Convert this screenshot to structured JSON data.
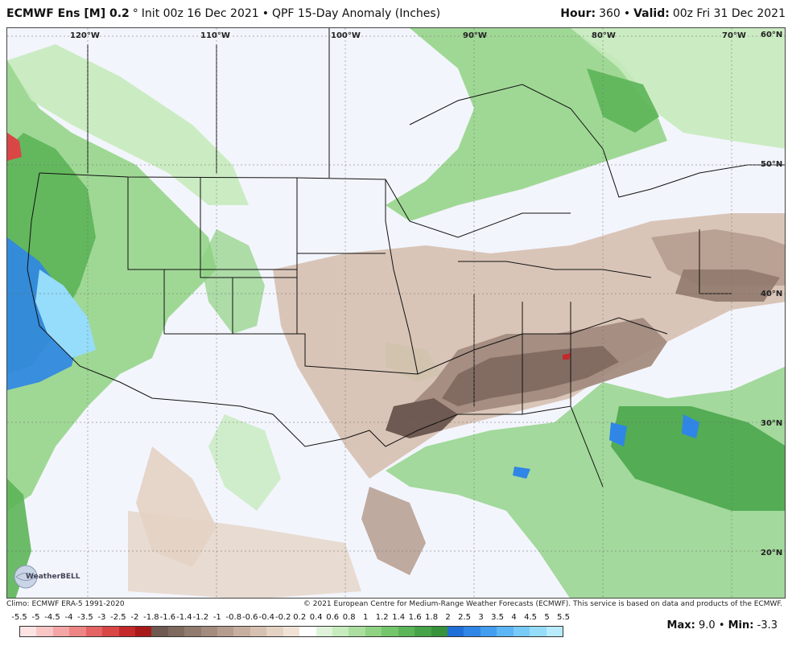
{
  "header": {
    "model": "ECMWF Ens [M] 0.2",
    "degree": "°",
    "init": "Init 00z 16 Dec 2021",
    "bullet": "•",
    "product": "QPF 15-Day Anomaly (Inches)",
    "hour_label": "Hour:",
    "hour_value": "360",
    "valid_label": "Valid:",
    "valid_value": "00z Fri 31 Dec 2021"
  },
  "axes": {
    "longitudes": [
      "120°W",
      "110°W",
      "100°W",
      "90°W",
      "80°W",
      "70°W"
    ],
    "latitudes": [
      "60°N",
      "50°N",
      "40°N",
      "30°N",
      "20°N"
    ]
  },
  "footer": {
    "climo": "Climo: ECMWF ERA-5 1991-2020",
    "copyright": "© 2021 European Centre for Medium-Range Weather Forecasts (ECMWF). This service is based on data and products of the ECMWF."
  },
  "colorbar": {
    "labels": [
      "-5.5",
      "-5",
      "-4.5",
      "-4",
      "-3.5",
      "-3",
      "-2.5",
      "-2",
      "-1.8",
      "-1.6",
      "-1.4",
      "-1.2",
      "-1",
      "-0.8",
      "-0.6",
      "-0.4",
      "-0.2",
      "0.2",
      "0.4",
      "0.6",
      "0.8",
      "1",
      "1.2",
      "1.4",
      "1.6",
      "1.8",
      "2",
      "2.5",
      "3",
      "3.5",
      "4",
      "4.5",
      "5",
      "5.5"
    ],
    "colors": [
      "#fde3e3",
      "#f9c6c6",
      "#f4a5a5",
      "#ee8585",
      "#e56363",
      "#d94646",
      "#c42a2a",
      "#a81a1a",
      "#6e5a52",
      "#7f6a60",
      "#917a6e",
      "#a38b7e",
      "#b59c8f",
      "#c7ae9f",
      "#d6c0b0",
      "#e4d2c3",
      "#f0e3d6",
      "#ffffff",
      "#dff3d8",
      "#c6ebbd",
      "#abdf9f",
      "#8fd283",
      "#74c56b",
      "#5cb558",
      "#47a349",
      "#38923c",
      "#1f6fd6",
      "#2f86e6",
      "#449ef0",
      "#5cb5f5",
      "#78caf8",
      "#96dcfb",
      "#b8ecfd"
    ]
  },
  "maxmin": {
    "max_label": "Max:",
    "max_value": "9.0",
    "min_label": "Min:",
    "min_value": "-3.3"
  },
  "logo": {
    "text": "WeatherBELL"
  }
}
